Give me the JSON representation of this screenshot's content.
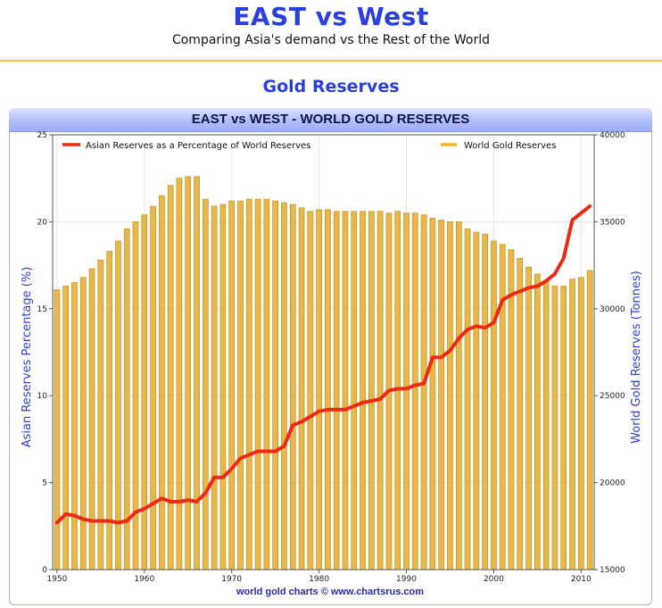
{
  "header": {
    "title": "EAST vs West",
    "subtitle": "Comparing Asia's demand vs the Rest of the World",
    "section": "Gold Reserves"
  },
  "panel": {
    "title": "EAST vs WEST - WORLD GOLD RESERVES",
    "footer": "world gold charts © www.chartsrus.com"
  },
  "colors": {
    "accent": "#2b3fdc",
    "line": "#ee2a14",
    "bar": "#e7b74a",
    "bar_edge": "#b98a1c"
  },
  "chart_data": {
    "type": "bar",
    "x_ticks": [
      "1950",
      "1960",
      "1970",
      "1980",
      "1990",
      "2000",
      "2010"
    ],
    "x_range": [
      1949.5,
      2011.5
    ],
    "y_left": {
      "label": "Asian Reserves Percentage (%)",
      "range": [
        0,
        25
      ],
      "ticks": [
        "0",
        "5",
        "10",
        "15",
        "20",
        "25"
      ]
    },
    "y_right": {
      "label": "World Gold Reserves (Tonnes)",
      "range": [
        15000,
        40000
      ],
      "ticks": [
        "15000",
        "20000",
        "25000",
        "30000",
        "35000",
        "40000"
      ]
    },
    "grid": true,
    "legend": "top",
    "series": [
      {
        "name": "World Gold Reserves",
        "type": "bar",
        "axis": "right",
        "x": [
          1950,
          1951,
          1952,
          1953,
          1954,
          1955,
          1956,
          1957,
          1958,
          1959,
          1960,
          1961,
          1962,
          1963,
          1964,
          1965,
          1966,
          1967,
          1968,
          1969,
          1970,
          1971,
          1972,
          1973,
          1974,
          1975,
          1976,
          1977,
          1978,
          1979,
          1980,
          1981,
          1982,
          1983,
          1984,
          1985,
          1986,
          1987,
          1988,
          1989,
          1990,
          1991,
          1992,
          1993,
          1994,
          1995,
          1996,
          1997,
          1998,
          1999,
          2000,
          2001,
          2002,
          2003,
          2004,
          2005,
          2006,
          2007,
          2008,
          2009,
          2010,
          2011
        ],
        "values": [
          31100,
          31300,
          31500,
          31800,
          32300,
          32800,
          33300,
          33900,
          34600,
          35000,
          35400,
          35900,
          36500,
          37100,
          37500,
          37600,
          37600,
          36300,
          35900,
          36000,
          36200,
          36200,
          36300,
          36300,
          36300,
          36200,
          36100,
          36000,
          35800,
          35600,
          35700,
          35700,
          35600,
          35600,
          35600,
          35600,
          35600,
          35600,
          35500,
          35600,
          35500,
          35500,
          35400,
          35200,
          35100,
          35000,
          35000,
          34600,
          34400,
          34300,
          33900,
          33700,
          33400,
          32900,
          32400,
          32000,
          31600,
          31300,
          31300,
          31700,
          31800,
          32200
        ]
      },
      {
        "name": "Asian Reserves as a Percentage of World Reserves",
        "type": "line",
        "axis": "left",
        "x": [
          1950,
          1951,
          1952,
          1953,
          1954,
          1955,
          1956,
          1957,
          1958,
          1959,
          1960,
          1961,
          1962,
          1963,
          1964,
          1965,
          1966,
          1967,
          1968,
          1969,
          1970,
          1971,
          1972,
          1973,
          1974,
          1975,
          1976,
          1977,
          1978,
          1979,
          1980,
          1981,
          1982,
          1983,
          1984,
          1985,
          1986,
          1987,
          1988,
          1989,
          1990,
          1991,
          1992,
          1993,
          1994,
          1995,
          1996,
          1997,
          1998,
          1999,
          2000,
          2001,
          2002,
          2003,
          2004,
          2005,
          2006,
          2007,
          2008,
          2009,
          2010,
          2011
        ],
        "values": [
          2.7,
          3.2,
          3.1,
          2.9,
          2.8,
          2.8,
          2.8,
          2.7,
          2.8,
          3.3,
          3.5,
          3.8,
          4.1,
          3.9,
          3.9,
          4.0,
          3.9,
          4.4,
          5.3,
          5.3,
          5.8,
          6.4,
          6.6,
          6.8,
          6.8,
          6.8,
          7.1,
          8.3,
          8.5,
          8.8,
          9.1,
          9.2,
          9.2,
          9.2,
          9.4,
          9.6,
          9.7,
          9.8,
          10.3,
          10.4,
          10.4,
          10.6,
          10.7,
          12.2,
          12.2,
          12.6,
          13.3,
          13.8,
          14.0,
          13.9,
          14.2,
          15.5,
          15.8,
          16.0,
          16.2,
          16.3,
          16.6,
          17.0,
          17.9,
          20.1,
          20.5,
          20.9
        ]
      }
    ]
  }
}
